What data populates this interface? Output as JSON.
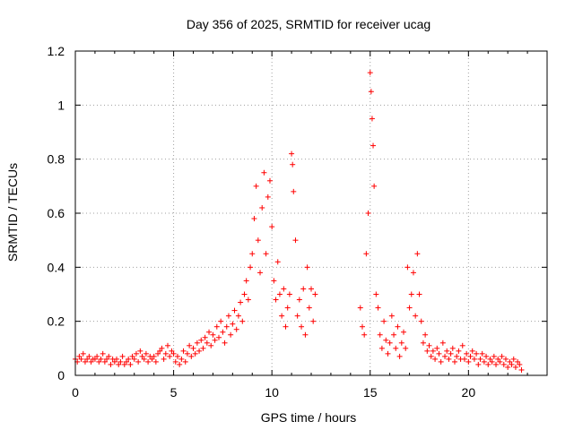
{
  "chart_data": {
    "type": "scatter",
    "title": "Day 356 of 2025, SRMTID for receiver ucag",
    "xlabel": "GPS time / hours",
    "ylabel": "SRMTID / TECUs",
    "xlim": [
      0,
      24
    ],
    "ylim": [
      0,
      1.2
    ],
    "xticks": [
      0,
      5,
      10,
      15,
      20
    ],
    "yticks": [
      0,
      0.2,
      0.4,
      0.6,
      0.8,
      1,
      1.2
    ],
    "xtick_labels": [
      "0",
      "5",
      "10",
      "15",
      "20"
    ],
    "ytick_labels": [
      "0",
      "0.2",
      "0.4",
      "0.6",
      "0.8",
      "1",
      "1.2"
    ],
    "grid": true,
    "marker": "+",
    "series": [
      {
        "name": "SRMTID",
        "color": "#ff0000",
        "points": [
          [
            0.0,
            0.06
          ],
          [
            0.1,
            0.05
          ],
          [
            0.2,
            0.07
          ],
          [
            0.3,
            0.06
          ],
          [
            0.4,
            0.08
          ],
          [
            0.5,
            0.05
          ],
          [
            0.6,
            0.06
          ],
          [
            0.7,
            0.07
          ],
          [
            0.8,
            0.05
          ],
          [
            0.9,
            0.06
          ],
          [
            1.0,
            0.06
          ],
          [
            1.1,
            0.07
          ],
          [
            1.2,
            0.05
          ],
          [
            1.3,
            0.06
          ],
          [
            1.4,
            0.08
          ],
          [
            1.5,
            0.05
          ],
          [
            1.6,
            0.06
          ],
          [
            1.7,
            0.07
          ],
          [
            1.8,
            0.04
          ],
          [
            1.9,
            0.06
          ],
          [
            2.0,
            0.05
          ],
          [
            2.1,
            0.06
          ],
          [
            2.2,
            0.04
          ],
          [
            2.3,
            0.05
          ],
          [
            2.4,
            0.07
          ],
          [
            2.5,
            0.04
          ],
          [
            2.6,
            0.05
          ],
          [
            2.7,
            0.06
          ],
          [
            2.8,
            0.04
          ],
          [
            2.9,
            0.07
          ],
          [
            3.0,
            0.06
          ],
          [
            3.1,
            0.08
          ],
          [
            3.2,
            0.05
          ],
          [
            3.3,
            0.09
          ],
          [
            3.4,
            0.07
          ],
          [
            3.5,
            0.06
          ],
          [
            3.6,
            0.08
          ],
          [
            3.7,
            0.05
          ],
          [
            3.8,
            0.07
          ],
          [
            3.9,
            0.06
          ],
          [
            4.0,
            0.07
          ],
          [
            4.1,
            0.05
          ],
          [
            4.2,
            0.08
          ],
          [
            4.3,
            0.09
          ],
          [
            4.4,
            0.1
          ],
          [
            4.5,
            0.06
          ],
          [
            4.6,
            0.08
          ],
          [
            4.7,
            0.11
          ],
          [
            4.8,
            0.07
          ],
          [
            4.9,
            0.09
          ],
          [
            5.0,
            0.08
          ],
          [
            5.1,
            0.05
          ],
          [
            5.2,
            0.07
          ],
          [
            5.3,
            0.04
          ],
          [
            5.4,
            0.06
          ],
          [
            5.5,
            0.09
          ],
          [
            5.6,
            0.05
          ],
          [
            5.7,
            0.08
          ],
          [
            5.8,
            0.11
          ],
          [
            5.9,
            0.07
          ],
          [
            6.0,
            0.1
          ],
          [
            6.1,
            0.08
          ],
          [
            6.2,
            0.12
          ],
          [
            6.3,
            0.09
          ],
          [
            6.4,
            0.13
          ],
          [
            6.5,
            0.1
          ],
          [
            6.6,
            0.14
          ],
          [
            6.7,
            0.12
          ],
          [
            6.8,
            0.16
          ],
          [
            6.9,
            0.11
          ],
          [
            7.0,
            0.15
          ],
          [
            7.1,
            0.13
          ],
          [
            7.2,
            0.18
          ],
          [
            7.3,
            0.14
          ],
          [
            7.4,
            0.2
          ],
          [
            7.5,
            0.16
          ],
          [
            7.6,
            0.12
          ],
          [
            7.7,
            0.18
          ],
          [
            7.8,
            0.22
          ],
          [
            7.9,
            0.15
          ],
          [
            8.0,
            0.19
          ],
          [
            8.1,
            0.24
          ],
          [
            8.2,
            0.17
          ],
          [
            8.3,
            0.22
          ],
          [
            8.4,
            0.27
          ],
          [
            8.5,
            0.2
          ],
          [
            8.6,
            0.3
          ],
          [
            8.7,
            0.35
          ],
          [
            8.8,
            0.28
          ],
          [
            8.9,
            0.4
          ],
          [
            9.0,
            0.45
          ],
          [
            9.1,
            0.58
          ],
          [
            9.2,
            0.7
          ],
          [
            9.3,
            0.5
          ],
          [
            9.4,
            0.38
          ],
          [
            9.5,
            0.62
          ],
          [
            9.6,
            0.75
          ],
          [
            9.7,
            0.45
          ],
          [
            9.8,
            0.66
          ],
          [
            9.9,
            0.72
          ],
          [
            10.0,
            0.55
          ],
          [
            10.1,
            0.35
          ],
          [
            10.2,
            0.28
          ],
          [
            10.3,
            0.42
          ],
          [
            10.4,
            0.3
          ],
          [
            10.5,
            0.22
          ],
          [
            10.6,
            0.32
          ],
          [
            10.7,
            0.18
          ],
          [
            10.8,
            0.25
          ],
          [
            10.9,
            0.3
          ],
          [
            11.0,
            0.82
          ],
          [
            11.05,
            0.78
          ],
          [
            11.1,
            0.68
          ],
          [
            11.2,
            0.5
          ],
          [
            11.3,
            0.22
          ],
          [
            11.4,
            0.28
          ],
          [
            11.5,
            0.18
          ],
          [
            11.6,
            0.32
          ],
          [
            11.7,
            0.15
          ],
          [
            11.8,
            0.4
          ],
          [
            11.9,
            0.25
          ],
          [
            12.0,
            0.32
          ],
          [
            12.1,
            0.2
          ],
          [
            12.2,
            0.3
          ],
          [
            14.5,
            0.25
          ],
          [
            14.6,
            0.18
          ],
          [
            14.7,
            0.15
          ],
          [
            14.8,
            0.45
          ],
          [
            14.9,
            0.6
          ],
          [
            15.0,
            1.12
          ],
          [
            15.05,
            1.05
          ],
          [
            15.1,
            0.95
          ],
          [
            15.15,
            0.85
          ],
          [
            15.2,
            0.7
          ],
          [
            15.3,
            0.3
          ],
          [
            15.4,
            0.25
          ],
          [
            15.5,
            0.15
          ],
          [
            15.6,
            0.1
          ],
          [
            15.7,
            0.2
          ],
          [
            15.8,
            0.13
          ],
          [
            15.9,
            0.08
          ],
          [
            16.0,
            0.12
          ],
          [
            16.1,
            0.22
          ],
          [
            16.2,
            0.15
          ],
          [
            16.3,
            0.1
          ],
          [
            16.4,
            0.18
          ],
          [
            16.5,
            0.07
          ],
          [
            16.6,
            0.12
          ],
          [
            16.7,
            0.16
          ],
          [
            16.8,
            0.1
          ],
          [
            16.9,
            0.4
          ],
          [
            17.0,
            0.25
          ],
          [
            17.1,
            0.3
          ],
          [
            17.2,
            0.38
          ],
          [
            17.3,
            0.22
          ],
          [
            17.4,
            0.45
          ],
          [
            17.5,
            0.3
          ],
          [
            17.6,
            0.2
          ],
          [
            17.7,
            0.12
          ],
          [
            17.8,
            0.15
          ],
          [
            17.9,
            0.09
          ],
          [
            18.0,
            0.11
          ],
          [
            18.1,
            0.07
          ],
          [
            18.2,
            0.09
          ],
          [
            18.3,
            0.06
          ],
          [
            18.4,
            0.1
          ],
          [
            18.5,
            0.08
          ],
          [
            18.6,
            0.05
          ],
          [
            18.7,
            0.12
          ],
          [
            18.8,
            0.07
          ],
          [
            18.9,
            0.09
          ],
          [
            19.0,
            0.06
          ],
          [
            19.1,
            0.08
          ],
          [
            19.2,
            0.1
          ],
          [
            19.3,
            0.05
          ],
          [
            19.4,
            0.07
          ],
          [
            19.5,
            0.09
          ],
          [
            19.6,
            0.06
          ],
          [
            19.7,
            0.11
          ],
          [
            19.8,
            0.06
          ],
          [
            19.9,
            0.08
          ],
          [
            20.0,
            0.05
          ],
          [
            20.1,
            0.07
          ],
          [
            20.2,
            0.09
          ],
          [
            20.3,
            0.06
          ],
          [
            20.4,
            0.08
          ],
          [
            20.5,
            0.04
          ],
          [
            20.6,
            0.06
          ],
          [
            20.7,
            0.08
          ],
          [
            20.8,
            0.05
          ],
          [
            20.9,
            0.07
          ],
          [
            21.0,
            0.04
          ],
          [
            21.1,
            0.06
          ],
          [
            21.2,
            0.05
          ],
          [
            21.3,
            0.07
          ],
          [
            21.4,
            0.04
          ],
          [
            21.5,
            0.06
          ],
          [
            21.6,
            0.05
          ],
          [
            21.7,
            0.07
          ],
          [
            21.8,
            0.04
          ],
          [
            21.9,
            0.06
          ],
          [
            22.0,
            0.03
          ],
          [
            22.1,
            0.05
          ],
          [
            22.2,
            0.04
          ],
          [
            22.3,
            0.06
          ],
          [
            22.4,
            0.03
          ],
          [
            22.5,
            0.05
          ],
          [
            22.6,
            0.04
          ],
          [
            22.7,
            0.02
          ]
        ]
      }
    ]
  }
}
